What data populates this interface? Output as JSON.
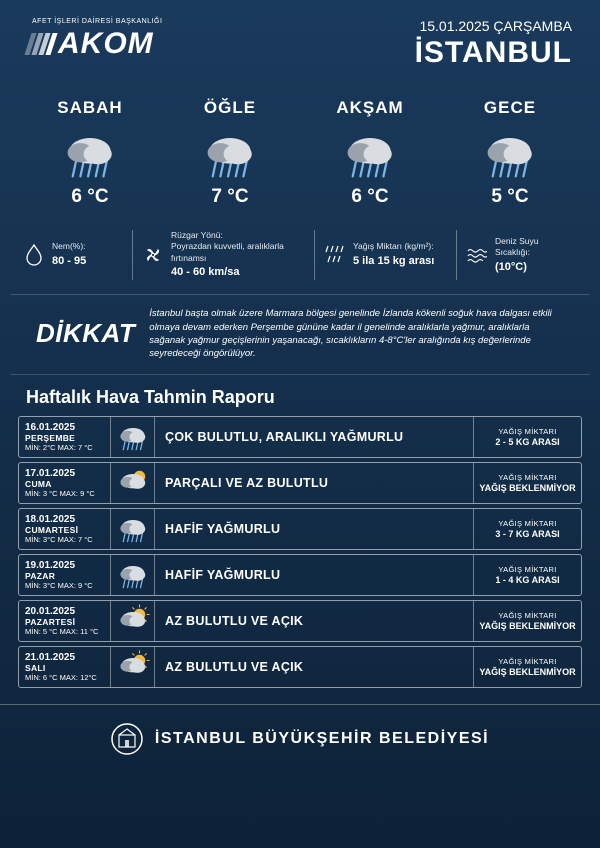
{
  "style": {
    "bg_gradient_top": "#1a3a5c",
    "bg_gradient_bottom": "#0d2238",
    "text_color": "#ffffff",
    "border_color": "rgba(255,255,255,0.5)",
    "cloud_fill": "#d9dde2",
    "cloud_shadow": "#9aa3ad",
    "rain_color": "#7bb8e8",
    "sun_color": "#f5b942"
  },
  "header": {
    "logo_small": "AFET İŞLERİ DAİRESİ BAŞKANLIĞI",
    "logo_text": "AKOM",
    "date": "15.01.2025  ÇARŞAMBA",
    "city": "İSTANBUL"
  },
  "periods": [
    {
      "label": "SABAH",
      "temp": "6  °C",
      "icon": "rain"
    },
    {
      "label": "ÖĞLE",
      "temp": "7  °C",
      "icon": "rain"
    },
    {
      "label": "AKŞAM",
      "temp": "6  °C",
      "icon": "rain"
    },
    {
      "label": "GECE",
      "temp": "5 °C",
      "icon": "rain"
    }
  ],
  "stats": {
    "humidity": {
      "label": "Nem(%):",
      "value": "80 - 95"
    },
    "wind": {
      "label": "Rüzgar Yönü:",
      "desc": "Poyrazdan kuvvetli, aralıklarla fırtınamsı",
      "value": "40 - 60 km/sa"
    },
    "precip": {
      "label": "Yağış Miktarı (kg/m²):",
      "value": "5 ila 15 kg arası"
    },
    "sea": {
      "label": "Deniz Suyu Sıcaklığı:",
      "value": "(10°C)"
    }
  },
  "warning": {
    "title": "DİKKAT",
    "text": "İstanbul başta olmak üzere Marmara bölgesi genelinde İzlanda kökenli soğuk hava dalgası etkili olmaya devam ederken Perşembe gününe kadar il genelinde aralıklarla yağmur, aralıklarla sağanak yağmur geçişlerinin yaşanacağı, sıcaklıkların 4-8°C'ler aralığında kış değerlerinde seyredeceği öngörülüyor."
  },
  "weekly_title": "Haftalık Hava Tahmin Raporu",
  "precip_label": "YAĞIŞ MİKTARI",
  "forecast": [
    {
      "date": "16.01.2025",
      "day": "PERŞEMBE",
      "min": "2°C",
      "max": "7 °C",
      "icon": "rain",
      "desc": "ÇOK BULUTLU, ARALIKLI YAĞMURLU",
      "precip": "2 - 5 KG ARASI"
    },
    {
      "date": "17.01.2025",
      "day": "CUMA",
      "min": "3 °C",
      "max": "9 °C",
      "icon": "partly",
      "desc": "PARÇALI VE AZ BULUTLU",
      "precip": "YAĞIŞ BEKLENMİYOR"
    },
    {
      "date": "18.01.2025",
      "day": "CUMARTESİ",
      "min": "3°C",
      "max": "7 °C",
      "icon": "rain",
      "desc": "HAFİF YAĞMURLU",
      "precip": "3 - 7 KG ARASI"
    },
    {
      "date": "19.01.2025",
      "day": "PAZAR",
      "min": "3°C",
      "max": "9 °C",
      "icon": "rain",
      "desc": "HAFİF YAĞMURLU",
      "precip": "1 - 4 KG ARASI"
    },
    {
      "date": "20.01.2025",
      "day": "PAZARTESİ",
      "min": "5 °C",
      "max": "11 °C",
      "icon": "sunny",
      "desc": "AZ BULUTLU VE AÇIK",
      "precip": "YAĞIŞ BEKLENMİYOR"
    },
    {
      "date": "21.01.2025",
      "day": "SALI",
      "min": "6 °C",
      "max": "12°C",
      "icon": "sunny",
      "desc": "AZ BULUTLU VE AÇIK",
      "precip": "YAĞIŞ BEKLENMİYOR"
    }
  ],
  "footer": {
    "text": "İSTANBUL BÜYÜKŞEHİR BELEDİYESİ"
  }
}
